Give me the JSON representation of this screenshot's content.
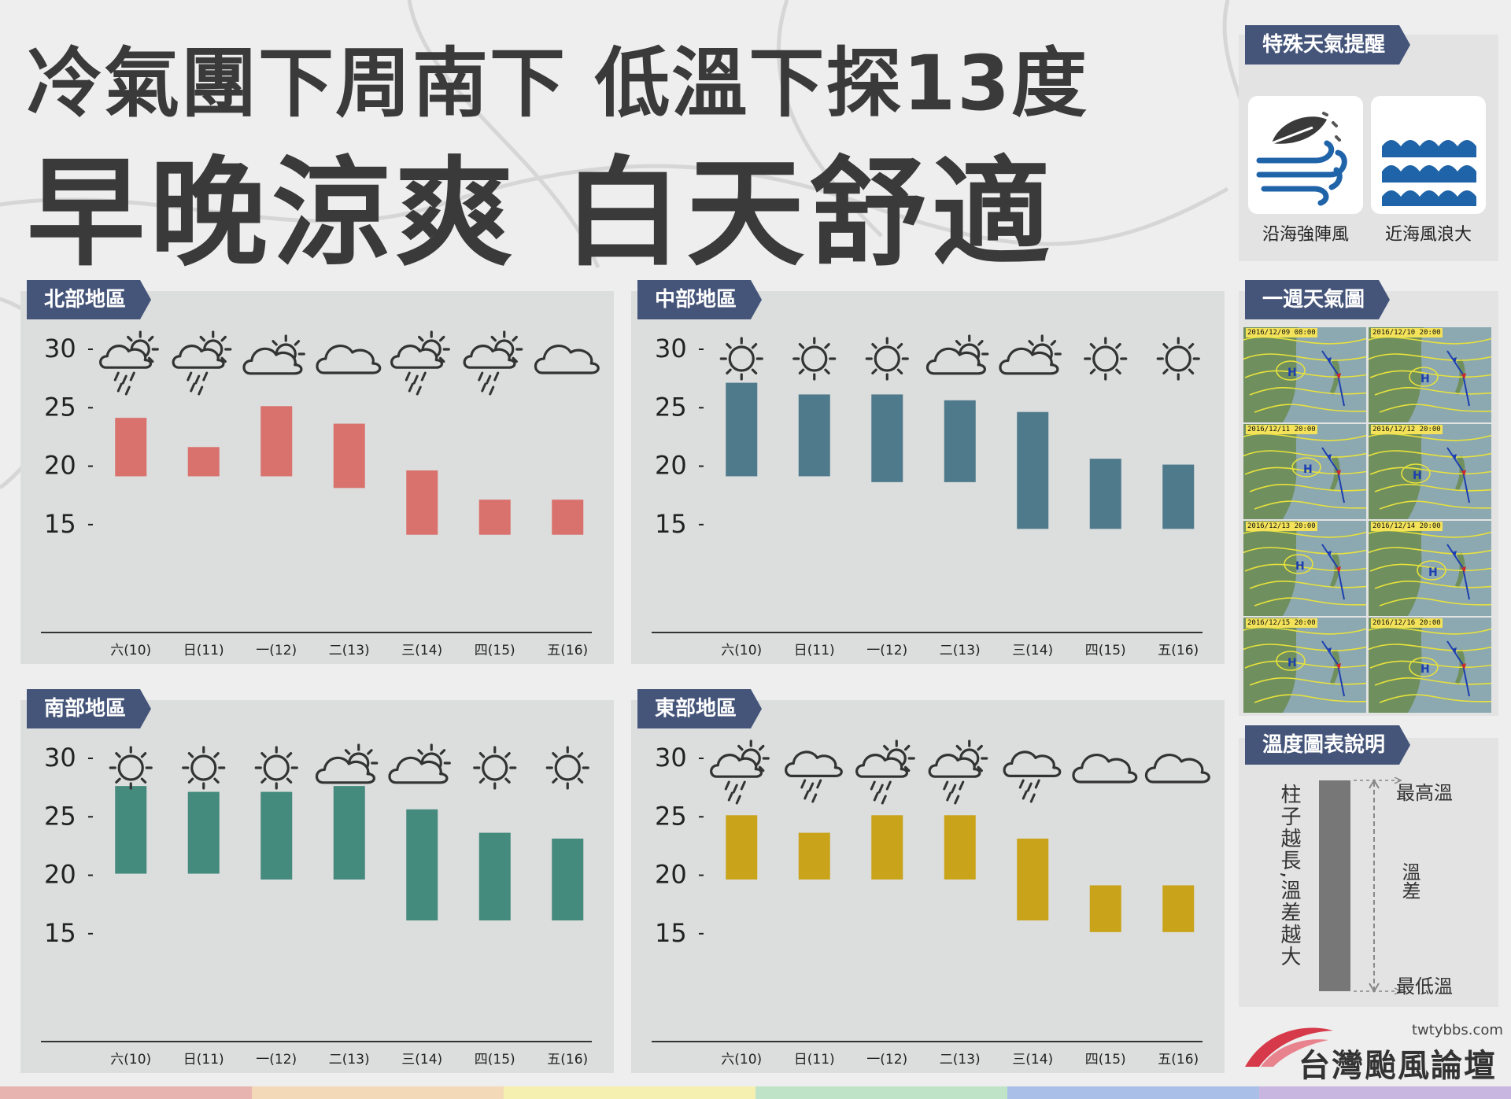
{
  "title": {
    "line1": "冷氣團下周南下 低溫下探13度",
    "line2": "早晚涼爽 白天舒適"
  },
  "special_alert": {
    "heading": "特殊天氣提醒",
    "items": [
      {
        "label": "沿海強陣風",
        "icon": "wind-leaf-icon"
      },
      {
        "label": "近海風浪大",
        "icon": "waves-icon"
      }
    ]
  },
  "weekly_map": {
    "heading": "一週天氣圖",
    "dates": [
      "2016/12/09 08:00",
      "2016/12/10 20:00",
      "2016/12/11 20:00",
      "2016/12/12 20:00",
      "2016/12/13 20:00",
      "2016/12/14 20:00",
      "2016/12/15 20:00",
      "2016/12/16 20:00"
    ]
  },
  "legend": {
    "heading": "溫度圖表說明",
    "note": "柱子越長,溫差越大",
    "high": "最高溫",
    "diff": "溫差",
    "low": "最低溫"
  },
  "footer": {
    "url": "twtybbs.com",
    "name": "台灣颱風論壇"
  },
  "colors": {
    "north": "#d9726d",
    "central": "#4e7a8c",
    "south": "#448a7d",
    "east": "#c9a41b",
    "tag": "#45557a",
    "stripes": [
      "#e8b4b0",
      "#f3d9b8",
      "#f6f0b0",
      "#bfe3c6",
      "#a9bfe8",
      "#c9b6e0"
    ]
  },
  "chart_data": [
    {
      "type": "bar",
      "region": "北部地區",
      "color": "#d9726d",
      "categories": [
        "六(10)",
        "日(11)",
        "一(12)",
        "二(13)",
        "三(14)",
        "四(15)",
        "五(16)"
      ],
      "icons": [
        "sun-cloud-rain",
        "sun-cloud-rain",
        "sun-cloud",
        "cloud",
        "sun-cloud-rain",
        "sun-cloud-rain",
        "cloud"
      ],
      "lows": [
        19,
        19,
        19,
        18,
        14,
        14,
        14
      ],
      "highs": [
        24,
        21.5,
        25,
        23.5,
        19.5,
        17,
        17
      ],
      "yticks": [
        30,
        25,
        20,
        15
      ],
      "ylim": [
        12.5,
        30
      ]
    },
    {
      "type": "bar",
      "region": "中部地區",
      "color": "#4e7a8c",
      "categories": [
        "六(10)",
        "日(11)",
        "一(12)",
        "二(13)",
        "三(14)",
        "四(15)",
        "五(16)"
      ],
      "icons": [
        "sun",
        "sun",
        "sun",
        "sun-cloud",
        "sun-cloud",
        "sun",
        "sun"
      ],
      "lows": [
        19,
        19,
        18.5,
        18.5,
        14.5,
        14.5,
        14.5
      ],
      "highs": [
        27,
        26,
        26,
        25.5,
        24.5,
        20.5,
        20
      ],
      "yticks": [
        30,
        25,
        20,
        15
      ],
      "ylim": [
        12.5,
        30
      ]
    },
    {
      "type": "bar",
      "region": "南部地區",
      "color": "#448a7d",
      "categories": [
        "六(10)",
        "日(11)",
        "一(12)",
        "二(13)",
        "三(14)",
        "四(15)",
        "五(16)"
      ],
      "icons": [
        "sun",
        "sun",
        "sun",
        "sun-cloud",
        "sun-cloud",
        "sun",
        "sun"
      ],
      "lows": [
        20,
        20,
        19.5,
        19.5,
        16,
        16,
        16
      ],
      "highs": [
        27.5,
        27,
        27,
        27.5,
        25.5,
        23.5,
        23
      ],
      "yticks": [
        30,
        25,
        20,
        15
      ],
      "ylim": [
        12.5,
        30
      ]
    },
    {
      "type": "bar",
      "region": "東部地區",
      "color": "#c9a41b",
      "categories": [
        "六(10)",
        "日(11)",
        "一(12)",
        "二(13)",
        "三(14)",
        "四(15)",
        "五(16)"
      ],
      "icons": [
        "sun-cloud-rain",
        "cloud-rain",
        "sun-cloud-rain",
        "sun-cloud-rain",
        "cloud-rain",
        "cloud",
        "cloud"
      ],
      "lows": [
        19.5,
        19.5,
        19.5,
        19.5,
        16,
        15,
        15
      ],
      "highs": [
        25,
        23.5,
        25,
        25,
        23,
        19,
        19
      ],
      "yticks": [
        30,
        25,
        20,
        15
      ],
      "ylim": [
        12.5,
        30
      ]
    }
  ]
}
